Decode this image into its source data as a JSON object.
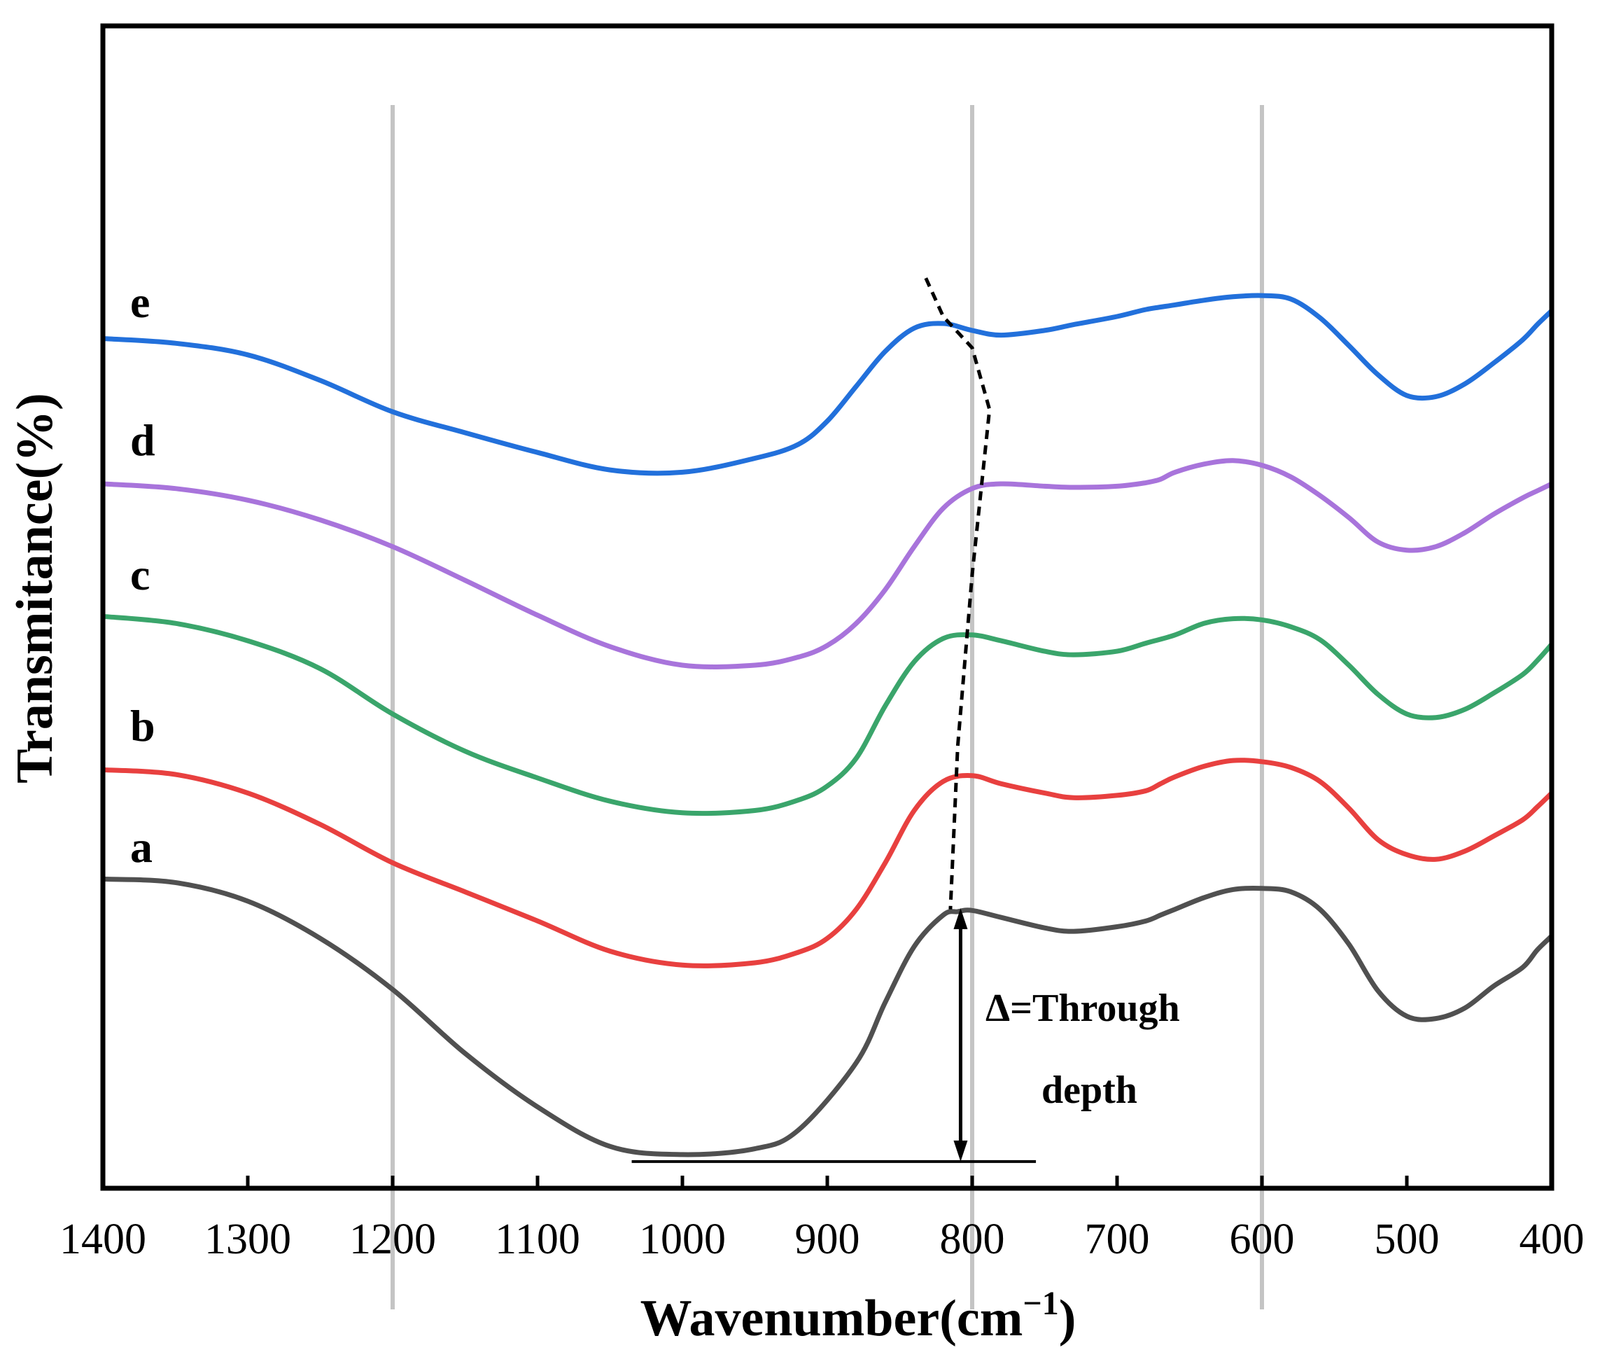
{
  "chart_data": {
    "type": "line",
    "title": "",
    "xlabel": "Wavenumber(cm",
    "xlabel_sup": "−1",
    "xlabel_close": ")",
    "ylabel": "Transmitance(%)",
    "xlim": [
      1400,
      400
    ],
    "ylim": [
      0,
      100
    ],
    "x_ticks": [
      1400,
      1300,
      1200,
      1100,
      1000,
      900,
      800,
      700,
      600,
      500,
      400
    ],
    "y_ticks_shown": false,
    "reference_lines_x": [
      1200,
      800,
      600
    ],
    "series": [
      {
        "name": "a",
        "color": "#505050",
        "points": [
          [
            1400,
            26.6
          ],
          [
            1350,
            26.3
          ],
          [
            1300,
            24.7
          ],
          [
            1250,
            21.5
          ],
          [
            1200,
            17.1
          ],
          [
            1150,
            11.6
          ],
          [
            1100,
            7
          ],
          [
            1050,
            3.6
          ],
          [
            1000,
            2.9
          ],
          [
            950,
            3.4
          ],
          [
            920,
            5
          ],
          [
            880,
            10.8
          ],
          [
            860,
            16
          ],
          [
            840,
            20.8
          ],
          [
            820,
            23.5
          ],
          [
            810,
            23.8
          ],
          [
            800,
            23.9
          ],
          [
            780,
            23.3
          ],
          [
            750,
            22.4
          ],
          [
            730,
            22.1
          ],
          [
            700,
            22.5
          ],
          [
            680,
            23
          ],
          [
            670,
            23.5
          ],
          [
            660,
            24
          ],
          [
            640,
            25
          ],
          [
            620,
            25.7
          ],
          [
            600,
            25.8
          ],
          [
            580,
            25.5
          ],
          [
            560,
            24
          ],
          [
            540,
            21
          ],
          [
            520,
            17
          ],
          [
            500,
            14.8
          ],
          [
            480,
            14.6
          ],
          [
            460,
            15.5
          ],
          [
            440,
            17.4
          ],
          [
            420,
            19
          ],
          [
            410,
            20.5
          ],
          [
            400,
            21.7
          ]
        ]
      },
      {
        "name": "b",
        "color": "#e8403f",
        "points": [
          [
            1400,
            36
          ],
          [
            1350,
            35.6
          ],
          [
            1300,
            34
          ],
          [
            1250,
            31.3
          ],
          [
            1200,
            28
          ],
          [
            1150,
            25.5
          ],
          [
            1100,
            23
          ],
          [
            1050,
            20.4
          ],
          [
            1000,
            19.2
          ],
          [
            950,
            19.4
          ],
          [
            920,
            20.3
          ],
          [
            900,
            21.5
          ],
          [
            880,
            24
          ],
          [
            860,
            28
          ],
          [
            840,
            32.5
          ],
          [
            820,
            35
          ],
          [
            800,
            35.5
          ],
          [
            780,
            34.8
          ],
          [
            750,
            34
          ],
          [
            730,
            33.6
          ],
          [
            700,
            33.8
          ],
          [
            680,
            34.2
          ],
          [
            670,
            34.8
          ],
          [
            660,
            35.4
          ],
          [
            640,
            36.3
          ],
          [
            620,
            36.8
          ],
          [
            600,
            36.7
          ],
          [
            580,
            36.2
          ],
          [
            560,
            35
          ],
          [
            540,
            32.7
          ],
          [
            520,
            30
          ],
          [
            500,
            28.7
          ],
          [
            480,
            28.3
          ],
          [
            460,
            29
          ],
          [
            440,
            30.3
          ],
          [
            420,
            31.7
          ],
          [
            410,
            32.8
          ],
          [
            400,
            34
          ]
        ]
      },
      {
        "name": "c",
        "color": "#3aa56b",
        "points": [
          [
            1400,
            49.2
          ],
          [
            1350,
            48.6
          ],
          [
            1300,
            47.1
          ],
          [
            1250,
            44.7
          ],
          [
            1200,
            40.8
          ],
          [
            1150,
            37.6
          ],
          [
            1100,
            35.3
          ],
          [
            1050,
            33.3
          ],
          [
            1000,
            32.3
          ],
          [
            950,
            32.5
          ],
          [
            920,
            33.4
          ],
          [
            900,
            34.6
          ],
          [
            880,
            37
          ],
          [
            860,
            41.5
          ],
          [
            840,
            45.3
          ],
          [
            820,
            47.3
          ],
          [
            800,
            47.6
          ],
          [
            780,
            47.1
          ],
          [
            750,
            46.2
          ],
          [
            730,
            45.9
          ],
          [
            700,
            46.2
          ],
          [
            680,
            46.9
          ],
          [
            660,
            47.6
          ],
          [
            640,
            48.6
          ],
          [
            620,
            49
          ],
          [
            600,
            48.9
          ],
          [
            580,
            48.3
          ],
          [
            560,
            47.2
          ],
          [
            540,
            45
          ],
          [
            520,
            42.5
          ],
          [
            500,
            40.8
          ],
          [
            480,
            40.5
          ],
          [
            460,
            41.2
          ],
          [
            440,
            42.6
          ],
          [
            420,
            44.2
          ],
          [
            410,
            45.4
          ],
          [
            400,
            46.8
          ]
        ]
      },
      {
        "name": "d",
        "color": "#a874db",
        "points": [
          [
            1400,
            60.6
          ],
          [
            1350,
            60.2
          ],
          [
            1300,
            59.2
          ],
          [
            1250,
            57.5
          ],
          [
            1200,
            55.2
          ],
          [
            1150,
            52.3
          ],
          [
            1100,
            49.3
          ],
          [
            1050,
            46.6
          ],
          [
            1000,
            45
          ],
          [
            950,
            45
          ],
          [
            920,
            45.7
          ],
          [
            900,
            46.7
          ],
          [
            880,
            48.6
          ],
          [
            860,
            51.5
          ],
          [
            840,
            55.2
          ],
          [
            820,
            58.5
          ],
          [
            800,
            60.2
          ],
          [
            780,
            60.6
          ],
          [
            750,
            60.4
          ],
          [
            730,
            60.3
          ],
          [
            700,
            60.4
          ],
          [
            680,
            60.7
          ],
          [
            670,
            61
          ],
          [
            660,
            61.6
          ],
          [
            640,
            62.3
          ],
          [
            620,
            62.6
          ],
          [
            600,
            62.2
          ],
          [
            580,
            61.2
          ],
          [
            560,
            59.6
          ],
          [
            540,
            57.7
          ],
          [
            520,
            55.6
          ],
          [
            500,
            54.9
          ],
          [
            480,
            55.2
          ],
          [
            460,
            56.4
          ],
          [
            440,
            58
          ],
          [
            420,
            59.4
          ],
          [
            410,
            60
          ],
          [
            400,
            60.6
          ]
        ]
      },
      {
        "name": "e",
        "color": "#2270db",
        "points": [
          [
            1400,
            73.1
          ],
          [
            1350,
            72.7
          ],
          [
            1300,
            71.7
          ],
          [
            1250,
            69.5
          ],
          [
            1200,
            66.8
          ],
          [
            1150,
            65
          ],
          [
            1100,
            63.3
          ],
          [
            1050,
            61.8
          ],
          [
            1000,
            61.6
          ],
          [
            950,
            62.8
          ],
          [
            920,
            64
          ],
          [
            900,
            66
          ],
          [
            880,
            69
          ],
          [
            860,
            72
          ],
          [
            840,
            74
          ],
          [
            820,
            74.4
          ],
          [
            800,
            73.8
          ],
          [
            780,
            73.4
          ],
          [
            750,
            73.8
          ],
          [
            730,
            74.3
          ],
          [
            700,
            75
          ],
          [
            680,
            75.6
          ],
          [
            660,
            76
          ],
          [
            640,
            76.4
          ],
          [
            620,
            76.7
          ],
          [
            600,
            76.8
          ],
          [
            580,
            76.5
          ],
          [
            560,
            74.9
          ],
          [
            540,
            72.5
          ],
          [
            520,
            70
          ],
          [
            500,
            68.2
          ],
          [
            480,
            68.1
          ],
          [
            460,
            69.2
          ],
          [
            440,
            71
          ],
          [
            420,
            73
          ],
          [
            410,
            74.3
          ],
          [
            400,
            75.5
          ]
        ]
      }
    ],
    "series_labels": [
      "a",
      "b",
      "c",
      "d",
      "e"
    ],
    "annotation": {
      "dashed_line_points": [
        [
          832,
          78.3
        ],
        [
          820,
          75
        ],
        [
          800,
          72.3
        ],
        [
          788,
          67
        ],
        [
          800,
          52.8
        ],
        [
          810,
          38
        ],
        [
          815,
          24
        ]
      ],
      "arrow_x": 808,
      "arrow_y_bottom": 2.3,
      "arrow_y_top": 24.1,
      "baseline": {
        "x_from": 1035,
        "x_to": 756,
        "y": 2.3
      },
      "label_line1": "Δ=Through",
      "label_line2": "depth"
    }
  }
}
